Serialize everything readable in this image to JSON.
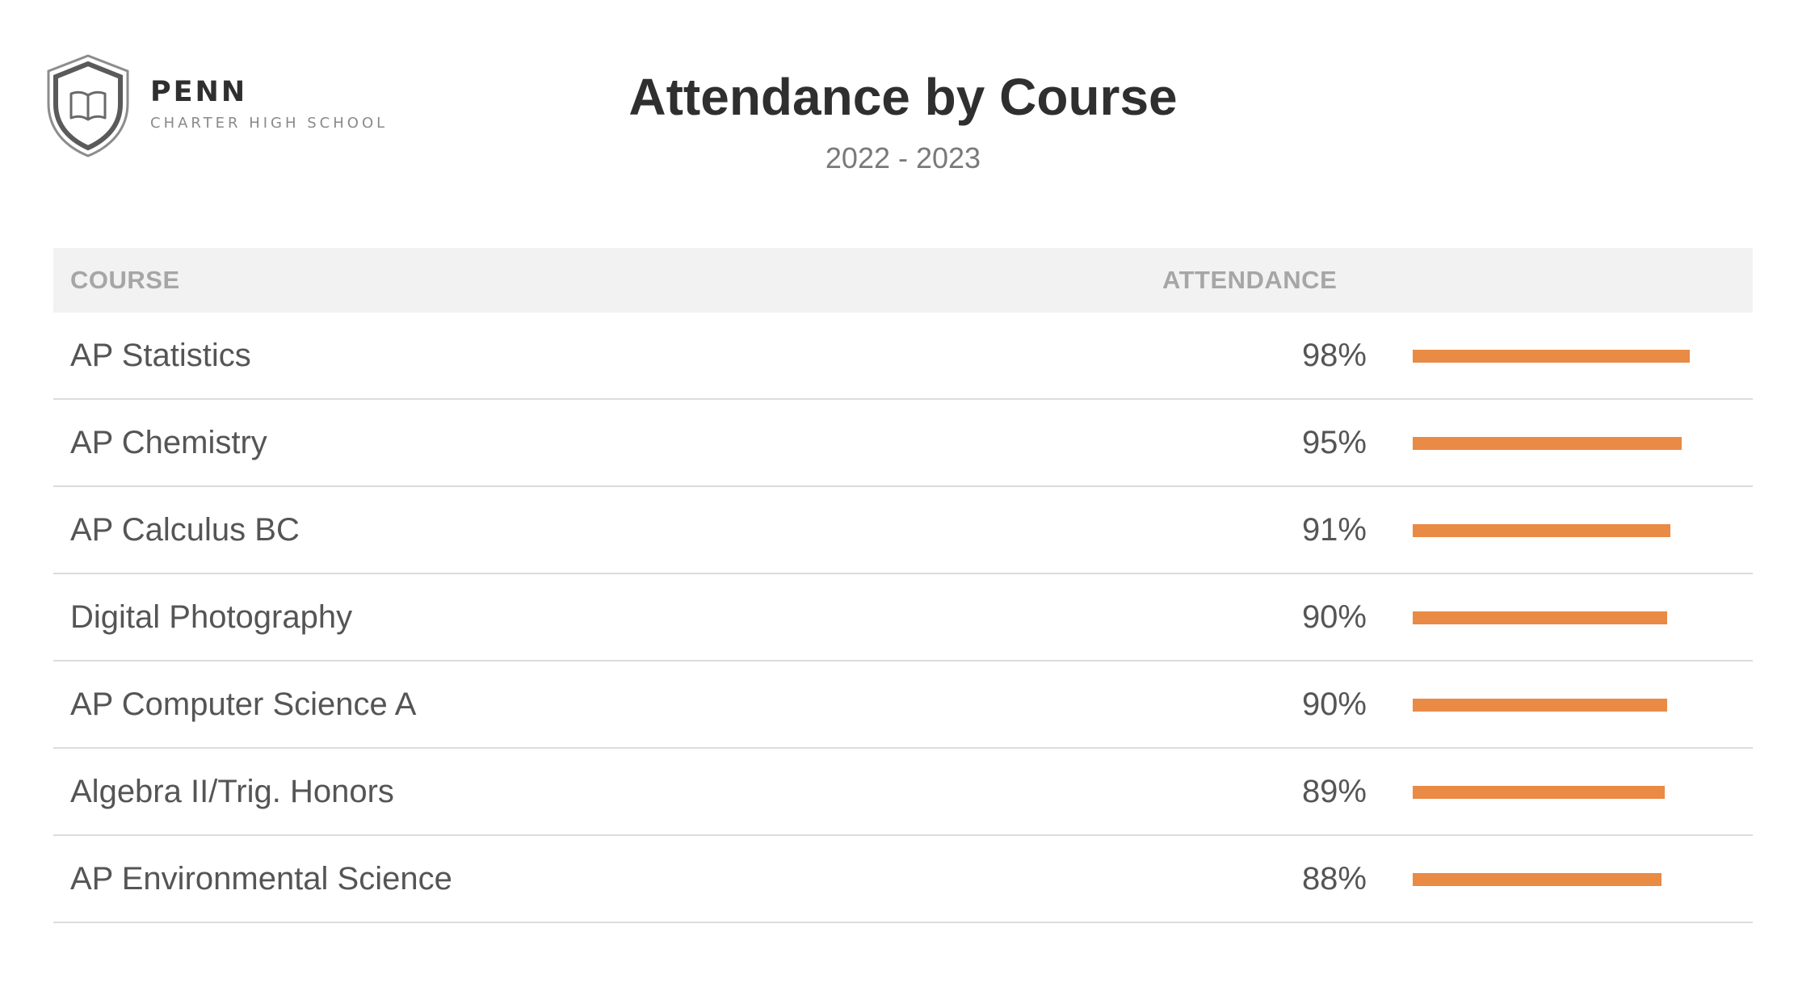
{
  "brand": {
    "name": "PENN",
    "subtitle": "CHARTER HIGH SCHOOL"
  },
  "colors": {
    "bar": "#e98a45"
  },
  "chart_data": {
    "type": "table",
    "title": "Attendance by Course",
    "subtitle": "2022 - 2023",
    "columns": [
      "COURSE",
      "ATTENDANCE"
    ],
    "value_unit": "%",
    "rows": [
      {
        "course": "AP Statistics",
        "label": "98%",
        "value": 98
      },
      {
        "course": "AP Chemistry",
        "label": "95%",
        "value": 95
      },
      {
        "course": "AP Calculus BC",
        "label": "91%",
        "value": 91
      },
      {
        "course": "Digital Photography",
        "label": "90%",
        "value": 90
      },
      {
        "course": "AP Computer Science A",
        "label": "90%",
        "value": 90
      },
      {
        "course": "Algebra II/Trig. Honors",
        "label": "89%",
        "value": 89
      },
      {
        "course": "AP Environmental Science",
        "label": "88%",
        "value": 88
      }
    ]
  }
}
